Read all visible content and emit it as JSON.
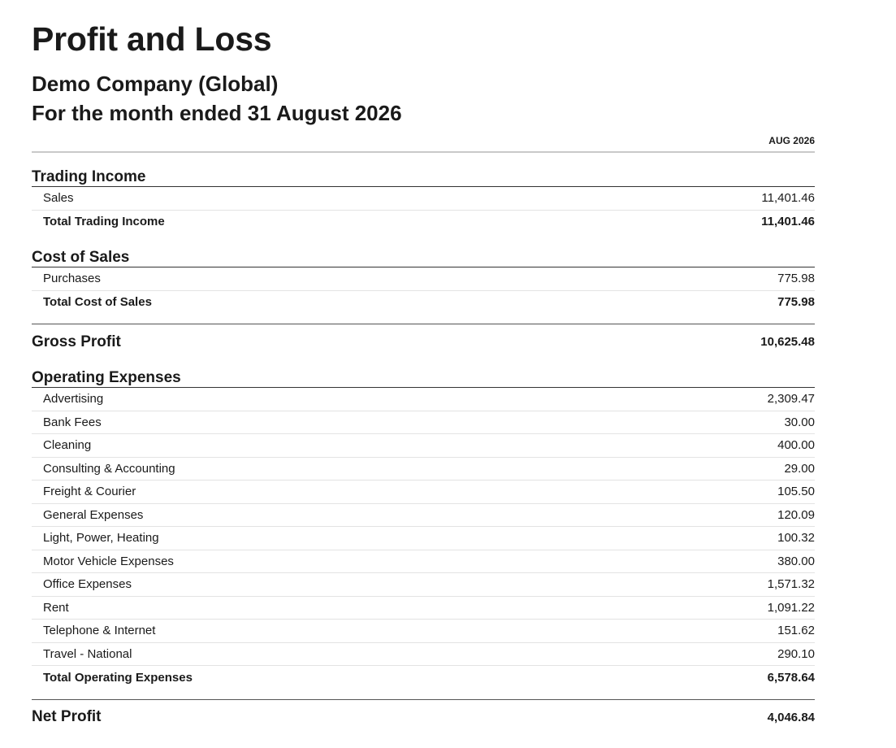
{
  "report": {
    "title": "Profit and Loss",
    "company": "Demo Company (Global)",
    "period": "For the month ended 31 August 2026",
    "column_header": "AUG 2026"
  },
  "trading_income": {
    "title": "Trading Income",
    "rows": [
      {
        "label": "Sales",
        "amount": "11,401.46"
      }
    ],
    "total_label": "Total Trading Income",
    "total_amount": "11,401.46"
  },
  "cost_of_sales": {
    "title": "Cost of Sales",
    "rows": [
      {
        "label": "Purchases",
        "amount": "775.98"
      }
    ],
    "total_label": "Total Cost of Sales",
    "total_amount": "775.98"
  },
  "gross_profit": {
    "label": "Gross Profit",
    "amount": "10,625.48"
  },
  "operating_expenses": {
    "title": "Operating Expenses",
    "rows": [
      {
        "label": "Advertising",
        "amount": "2,309.47"
      },
      {
        "label": "Bank Fees",
        "amount": "30.00"
      },
      {
        "label": "Cleaning",
        "amount": "400.00"
      },
      {
        "label": "Consulting & Accounting",
        "amount": "29.00"
      },
      {
        "label": "Freight & Courier",
        "amount": "105.50"
      },
      {
        "label": "General Expenses",
        "amount": "120.09"
      },
      {
        "label": "Light, Power, Heating",
        "amount": "100.32"
      },
      {
        "label": "Motor Vehicle Expenses",
        "amount": "380.00"
      },
      {
        "label": "Office Expenses",
        "amount": "1,571.32"
      },
      {
        "label": "Rent",
        "amount": "1,091.22"
      },
      {
        "label": "Telephone & Internet",
        "amount": "151.62"
      },
      {
        "label": "Travel - National",
        "amount": "290.10"
      }
    ],
    "total_label": "Total Operating Expenses",
    "total_amount": "6,578.64"
  },
  "net_profit": {
    "label": "Net Profit",
    "amount": "4,046.84"
  }
}
